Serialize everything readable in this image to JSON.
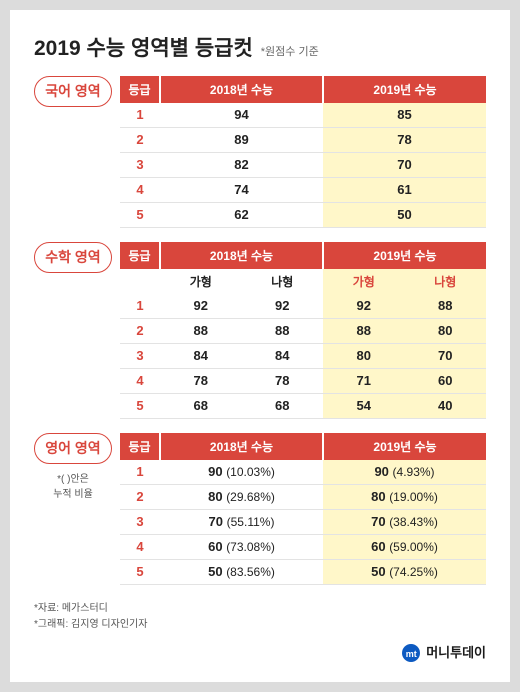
{
  "page": {
    "title": "2019 수능 영역별 등급컷",
    "subnote": "*원점수 기준",
    "footer_source": "*자료: 메가스터디",
    "footer_credit": "*그래픽: 김지영 디자인기자",
    "brand_logo": "mt",
    "brand_text": "머니투데이"
  },
  "colors": {
    "accent": "#d9463c",
    "highlight_bg": "#fff7c9",
    "row_border": "#e3e3e3",
    "page_bg": "#ffffff",
    "outer_bg": "#dcdcdc",
    "text": "#222222",
    "muted": "#666666"
  },
  "sections": {
    "korean": {
      "badge": "국어 영역",
      "headers": {
        "grade": "등급",
        "y2018": "2018년 수능",
        "y2019": "2019년 수능"
      },
      "rows": [
        {
          "grade": "1",
          "y2018": "94",
          "y2019": "85"
        },
        {
          "grade": "2",
          "y2018": "89",
          "y2019": "78"
        },
        {
          "grade": "3",
          "y2018": "82",
          "y2019": "70"
        },
        {
          "grade": "4",
          "y2018": "74",
          "y2019": "61"
        },
        {
          "grade": "5",
          "y2018": "62",
          "y2019": "50"
        }
      ]
    },
    "math": {
      "badge": "수학 영역",
      "headers": {
        "grade": "등급",
        "y2018": "2018년 수능",
        "y2019": "2019년 수능"
      },
      "subheaders": {
        "ga18": "가형",
        "na18": "나형",
        "ga19": "가형",
        "na19": "나형"
      },
      "rows": [
        {
          "grade": "1",
          "ga18": "92",
          "na18": "92",
          "ga19": "92",
          "na19": "88"
        },
        {
          "grade": "2",
          "ga18": "88",
          "na18": "88",
          "ga19": "88",
          "na19": "80"
        },
        {
          "grade": "3",
          "ga18": "84",
          "na18": "84",
          "ga19": "80",
          "na19": "70"
        },
        {
          "grade": "4",
          "ga18": "78",
          "na18": "78",
          "ga19": "71",
          "na19": "60"
        },
        {
          "grade": "5",
          "ga18": "68",
          "na18": "68",
          "ga19": "54",
          "na19": "40"
        }
      ]
    },
    "english": {
      "badge": "영어 영역",
      "badge_note": "*( )안은\n누적 비율",
      "headers": {
        "grade": "등급",
        "y2018": "2018년 수능",
        "y2019": "2019년 수능"
      },
      "rows": [
        {
          "grade": "1",
          "y2018": "90",
          "p2018": "(10.03%)",
          "y2019": "90",
          "p2019": "(4.93%)"
        },
        {
          "grade": "2",
          "y2018": "80",
          "p2018": "(29.68%)",
          "y2019": "80",
          "p2019": "(19.00%)"
        },
        {
          "grade": "3",
          "y2018": "70",
          "p2018": "(55.11%)",
          "y2019": "70",
          "p2019": "(38.43%)"
        },
        {
          "grade": "4",
          "y2018": "60",
          "p2018": "(73.08%)",
          "y2019": "60",
          "p2019": "(59.00%)"
        },
        {
          "grade": "5",
          "y2018": "50",
          "p2018": "(83.56%)",
          "y2019": "50",
          "p2019": "(74.25%)"
        }
      ]
    }
  }
}
